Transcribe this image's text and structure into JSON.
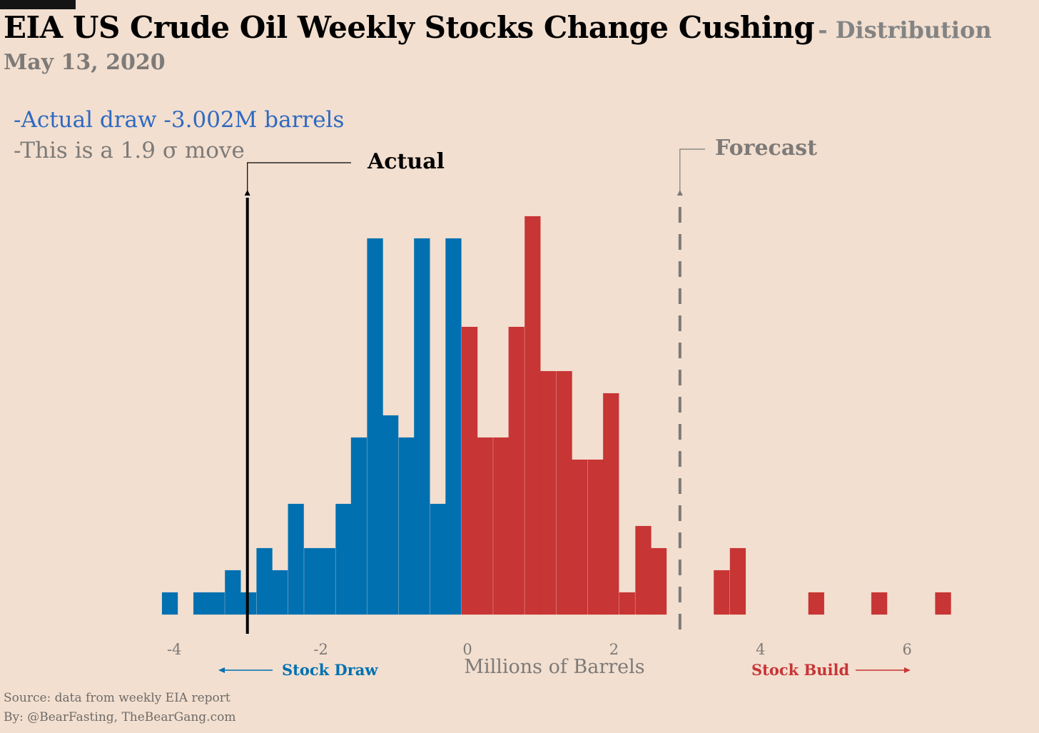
{
  "header": {
    "title": "EIA US Crude Oil Weekly Stocks Change Cushing",
    "subtitle": "- Distribution",
    "date": "May 13, 2020"
  },
  "notes": {
    "actual_line": "-Actual draw -3.002M barrels",
    "sigma_line": "-This is a 1.9 σ move"
  },
  "footer": {
    "source": "Source: data from  weekly EIA report",
    "byline": "By: @BearFasting, TheBearGang.com"
  },
  "colors": {
    "draw": "#0070b0",
    "build": "#c73535",
    "background": "#f2dfd0",
    "forecast": "#7d7a77"
  },
  "chart_data": {
    "type": "bar",
    "title": "",
    "xlabel": "Millions of Barrels",
    "ylabel": "",
    "xlim": [
      -4.25,
      6.75
    ],
    "ylim": [
      0,
      18
    ],
    "xticks": [
      -4,
      -2,
      0,
      2,
      4,
      6
    ],
    "xtick_labels": [
      "-4",
      "-2",
      "0",
      "2",
      "4",
      "6"
    ],
    "bin_width": 0.2155,
    "grid": false,
    "bins": [
      {
        "x": -4.06,
        "count": 1
      },
      {
        "x": -3.63,
        "count": 1
      },
      {
        "x": -3.42,
        "count": 1
      },
      {
        "x": -3.2,
        "count": 2
      },
      {
        "x": -2.99,
        "count": 1
      },
      {
        "x": -2.77,
        "count": 3
      },
      {
        "x": -2.56,
        "count": 2
      },
      {
        "x": -2.34,
        "count": 5
      },
      {
        "x": -2.12,
        "count": 3
      },
      {
        "x": -1.91,
        "count": 3
      },
      {
        "x": -1.69,
        "count": 5
      },
      {
        "x": -1.48,
        "count": 8
      },
      {
        "x": -1.26,
        "count": 17
      },
      {
        "x": -1.05,
        "count": 9
      },
      {
        "x": -0.83,
        "count": 8
      },
      {
        "x": -0.62,
        "count": 17
      },
      {
        "x": -0.4,
        "count": 5
      },
      {
        "x": -0.19,
        "count": 17
      },
      {
        "x": 0.03,
        "count": 13
      },
      {
        "x": 0.24,
        "count": 8
      },
      {
        "x": 0.46,
        "count": 8
      },
      {
        "x": 0.67,
        "count": 13
      },
      {
        "x": 0.89,
        "count": 18
      },
      {
        "x": 1.1,
        "count": 11
      },
      {
        "x": 1.32,
        "count": 11
      },
      {
        "x": 1.53,
        "count": 7
      },
      {
        "x": 1.75,
        "count": 7
      },
      {
        "x": 1.96,
        "count": 10
      },
      {
        "x": 2.18,
        "count": 1
      },
      {
        "x": 2.4,
        "count": 4
      },
      {
        "x": 2.61,
        "count": 3
      },
      {
        "x": 3.47,
        "count": 2
      },
      {
        "x": 3.69,
        "count": 3
      },
      {
        "x": 4.76,
        "count": 1
      },
      {
        "x": 5.62,
        "count": 1
      },
      {
        "x": 6.49,
        "count": 1
      }
    ],
    "series": [
      {
        "name": "Stock Draw",
        "color": "#0070b0"
      },
      {
        "name": "Stock Build",
        "color": "#c73535"
      }
    ],
    "annotations": {
      "actual": {
        "label": "Actual",
        "x": -3.002
      },
      "forecast": {
        "label": "Forecast",
        "x": 2.9
      },
      "left_arrow_label": "Stock Draw",
      "right_arrow_label": "Stock Build"
    }
  }
}
